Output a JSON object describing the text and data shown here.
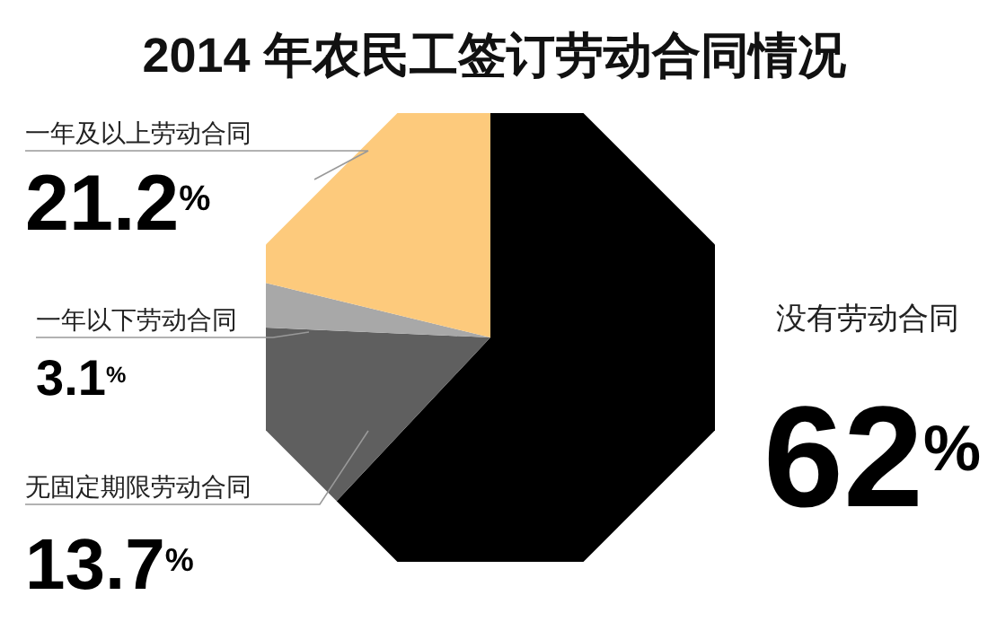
{
  "chart_data": {
    "type": "pie",
    "title": "2014 年农民工签订劳动合同情况",
    "categories": [
      "没有劳动合同",
      "无固定期限劳动合同",
      "一年以下劳动合同",
      "一年及以上劳动合同"
    ],
    "values": [
      62,
      13.7,
      3.1,
      21.2
    ],
    "colors": [
      "#000000",
      "#5f5f5f",
      "#a8a8a8",
      "#fdca7c"
    ],
    "value_labels": [
      "62$^{%}$",
      "13.7$^{%}$",
      "3.1$^{%}$",
      "21.2$^{%}$"
    ]
  }
}
